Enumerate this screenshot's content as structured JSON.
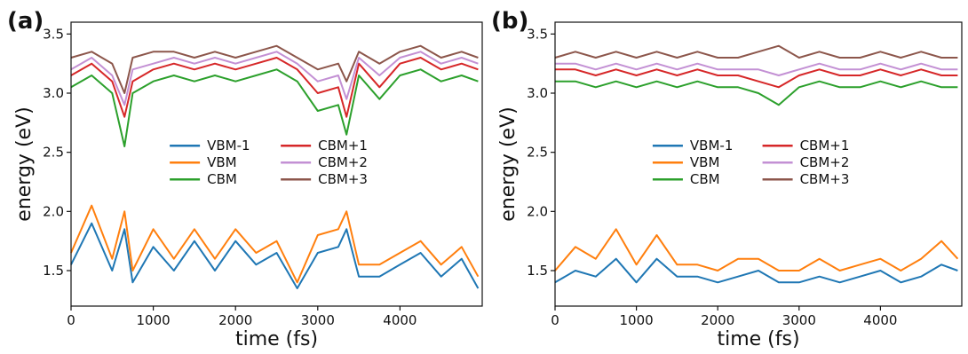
{
  "chart_data": [
    {
      "type": "line",
      "panel_label": "(a)",
      "xlabel": "time (fs)",
      "ylabel": "energy (eV)",
      "xlim": [
        0,
        5000
      ],
      "ylim": [
        1.2,
        3.6
      ],
      "xticks": [
        0,
        1000,
        2000,
        3000,
        4000
      ],
      "yticks": [
        1.5,
        2.0,
        2.5,
        3.0,
        3.5
      ],
      "legend": {
        "placement": "center",
        "columns": 2,
        "order": [
          "VBM-1",
          "VBM",
          "CBM",
          "CBM+1",
          "CBM+2",
          "CBM+3"
        ]
      },
      "grid": false,
      "series": [
        {
          "name": "VBM-1",
          "color": "#1f77b4",
          "x": [
            0,
            250,
            500,
            650,
            750,
            1000,
            1250,
            1500,
            1750,
            2000,
            2250,
            2500,
            2750,
            3000,
            3250,
            3350,
            3500,
            3750,
            4000,
            4250,
            4500,
            4750,
            4950
          ],
          "values": [
            1.55,
            1.9,
            1.5,
            1.85,
            1.4,
            1.7,
            1.5,
            1.75,
            1.5,
            1.75,
            1.55,
            1.65,
            1.35,
            1.65,
            1.7,
            1.85,
            1.45,
            1.45,
            1.55,
            1.65,
            1.45,
            1.6,
            1.35
          ]
        },
        {
          "name": "VBM",
          "color": "#ff7f0e",
          "x": [
            0,
            250,
            500,
            650,
            750,
            1000,
            1250,
            1500,
            1750,
            2000,
            2250,
            2500,
            2750,
            3000,
            3250,
            3350,
            3500,
            3750,
            4000,
            4250,
            4500,
            4750,
            4950
          ],
          "values": [
            1.65,
            2.05,
            1.6,
            2.0,
            1.5,
            1.85,
            1.6,
            1.85,
            1.6,
            1.85,
            1.65,
            1.75,
            1.4,
            1.8,
            1.85,
            2.0,
            1.55,
            1.55,
            1.65,
            1.75,
            1.55,
            1.7,
            1.45
          ]
        },
        {
          "name": "CBM",
          "color": "#2ca02c",
          "x": [
            0,
            250,
            500,
            650,
            750,
            1000,
            1250,
            1500,
            1750,
            2000,
            2250,
            2500,
            2750,
            3000,
            3250,
            3350,
            3500,
            3750,
            4000,
            4250,
            4500,
            4750,
            4950
          ],
          "values": [
            3.05,
            3.15,
            3.0,
            2.55,
            3.0,
            3.1,
            3.15,
            3.1,
            3.15,
            3.1,
            3.15,
            3.2,
            3.1,
            2.85,
            2.9,
            2.65,
            3.15,
            2.95,
            3.15,
            3.2,
            3.1,
            3.15,
            3.1
          ]
        },
        {
          "name": "CBM+1",
          "color": "#d62728",
          "x": [
            0,
            250,
            500,
            650,
            750,
            1000,
            1250,
            1500,
            1750,
            2000,
            2250,
            2500,
            2750,
            3000,
            3250,
            3350,
            3500,
            3750,
            4000,
            4250,
            4500,
            4750,
            4950
          ],
          "values": [
            3.15,
            3.25,
            3.1,
            2.8,
            3.1,
            3.2,
            3.25,
            3.2,
            3.25,
            3.2,
            3.25,
            3.3,
            3.2,
            3.0,
            3.05,
            2.8,
            3.25,
            3.05,
            3.25,
            3.3,
            3.2,
            3.25,
            3.2
          ]
        },
        {
          "name": "CBM+2",
          "color": "#c390d4",
          "x": [
            0,
            250,
            500,
            650,
            750,
            1000,
            1250,
            1500,
            1750,
            2000,
            2250,
            2500,
            2750,
            3000,
            3250,
            3350,
            3500,
            3750,
            4000,
            4250,
            4500,
            4750,
            4950
          ],
          "values": [
            3.2,
            3.3,
            3.15,
            2.9,
            3.2,
            3.25,
            3.3,
            3.25,
            3.3,
            3.25,
            3.3,
            3.35,
            3.25,
            3.1,
            3.15,
            2.95,
            3.3,
            3.15,
            3.3,
            3.35,
            3.25,
            3.3,
            3.25
          ]
        },
        {
          "name": "CBM+3",
          "color": "#8c564b",
          "x": [
            0,
            250,
            500,
            650,
            750,
            1000,
            1250,
            1500,
            1750,
            2000,
            2250,
            2500,
            2750,
            3000,
            3250,
            3350,
            3500,
            3750,
            4000,
            4250,
            4500,
            4750,
            4950
          ],
          "values": [
            3.3,
            3.35,
            3.25,
            3.0,
            3.3,
            3.35,
            3.35,
            3.3,
            3.35,
            3.3,
            3.35,
            3.4,
            3.3,
            3.2,
            3.25,
            3.1,
            3.35,
            3.25,
            3.35,
            3.4,
            3.3,
            3.35,
            3.3
          ]
        }
      ]
    },
    {
      "type": "line",
      "panel_label": "(b)",
      "xlabel": "time (fs)",
      "ylabel": "energy (eV)",
      "xlim": [
        0,
        5000
      ],
      "ylim": [
        1.2,
        3.6
      ],
      "xticks": [
        0,
        1000,
        2000,
        3000,
        4000
      ],
      "yticks": [
        1.5,
        2.0,
        2.5,
        3.0,
        3.5
      ],
      "legend": {
        "placement": "center",
        "columns": 2,
        "order": [
          "VBM-1",
          "VBM",
          "CBM",
          "CBM+1",
          "CBM+2",
          "CBM+3"
        ]
      },
      "grid": false,
      "series": [
        {
          "name": "VBM-1",
          "color": "#1f77b4",
          "x": [
            0,
            250,
            500,
            750,
            1000,
            1250,
            1500,
            1750,
            2000,
            2250,
            2500,
            2750,
            3000,
            3250,
            3500,
            3750,
            4000,
            4250,
            4500,
            4750,
            4950
          ],
          "values": [
            1.4,
            1.5,
            1.45,
            1.6,
            1.4,
            1.6,
            1.45,
            1.45,
            1.4,
            1.45,
            1.5,
            1.4,
            1.4,
            1.45,
            1.4,
            1.45,
            1.5,
            1.4,
            1.45,
            1.55,
            1.5
          ]
        },
        {
          "name": "VBM",
          "color": "#ff7f0e",
          "x": [
            0,
            250,
            500,
            750,
            1000,
            1250,
            1500,
            1750,
            2000,
            2250,
            2500,
            2750,
            3000,
            3250,
            3500,
            3750,
            4000,
            4250,
            4500,
            4750,
            4950
          ],
          "values": [
            1.5,
            1.7,
            1.6,
            1.85,
            1.55,
            1.8,
            1.55,
            1.55,
            1.5,
            1.6,
            1.6,
            1.5,
            1.5,
            1.6,
            1.5,
            1.55,
            1.6,
            1.5,
            1.6,
            1.75,
            1.6
          ]
        },
        {
          "name": "CBM",
          "color": "#2ca02c",
          "x": [
            0,
            250,
            500,
            750,
            1000,
            1250,
            1500,
            1750,
            2000,
            2250,
            2500,
            2750,
            3000,
            3250,
            3500,
            3750,
            4000,
            4250,
            4500,
            4750,
            4950
          ],
          "values": [
            3.1,
            3.1,
            3.05,
            3.1,
            3.05,
            3.1,
            3.05,
            3.1,
            3.05,
            3.05,
            3.0,
            2.9,
            3.05,
            3.1,
            3.05,
            3.05,
            3.1,
            3.05,
            3.1,
            3.05,
            3.05
          ]
        },
        {
          "name": "CBM+1",
          "color": "#d62728",
          "x": [
            0,
            250,
            500,
            750,
            1000,
            1250,
            1500,
            1750,
            2000,
            2250,
            2500,
            2750,
            3000,
            3250,
            3500,
            3750,
            4000,
            4250,
            4500,
            4750,
            4950
          ],
          "values": [
            3.2,
            3.2,
            3.15,
            3.2,
            3.15,
            3.2,
            3.15,
            3.2,
            3.15,
            3.15,
            3.1,
            3.05,
            3.15,
            3.2,
            3.15,
            3.15,
            3.2,
            3.15,
            3.2,
            3.15,
            3.15
          ]
        },
        {
          "name": "CBM+2",
          "color": "#c390d4",
          "x": [
            0,
            250,
            500,
            750,
            1000,
            1250,
            1500,
            1750,
            2000,
            2250,
            2500,
            2750,
            3000,
            3250,
            3500,
            3750,
            4000,
            4250,
            4500,
            4750,
            4950
          ],
          "values": [
            3.25,
            3.25,
            3.2,
            3.25,
            3.2,
            3.25,
            3.2,
            3.25,
            3.2,
            3.2,
            3.2,
            3.15,
            3.2,
            3.25,
            3.2,
            3.2,
            3.25,
            3.2,
            3.25,
            3.2,
            3.2
          ]
        },
        {
          "name": "CBM+3",
          "color": "#8c564b",
          "x": [
            0,
            250,
            500,
            750,
            1000,
            1250,
            1500,
            1750,
            2000,
            2250,
            2500,
            2750,
            3000,
            3250,
            3500,
            3750,
            4000,
            4250,
            4500,
            4750,
            4950
          ],
          "values": [
            3.3,
            3.35,
            3.3,
            3.35,
            3.3,
            3.35,
            3.3,
            3.35,
            3.3,
            3.3,
            3.35,
            3.4,
            3.3,
            3.35,
            3.3,
            3.3,
            3.35,
            3.3,
            3.35,
            3.3,
            3.3
          ]
        }
      ]
    }
  ]
}
